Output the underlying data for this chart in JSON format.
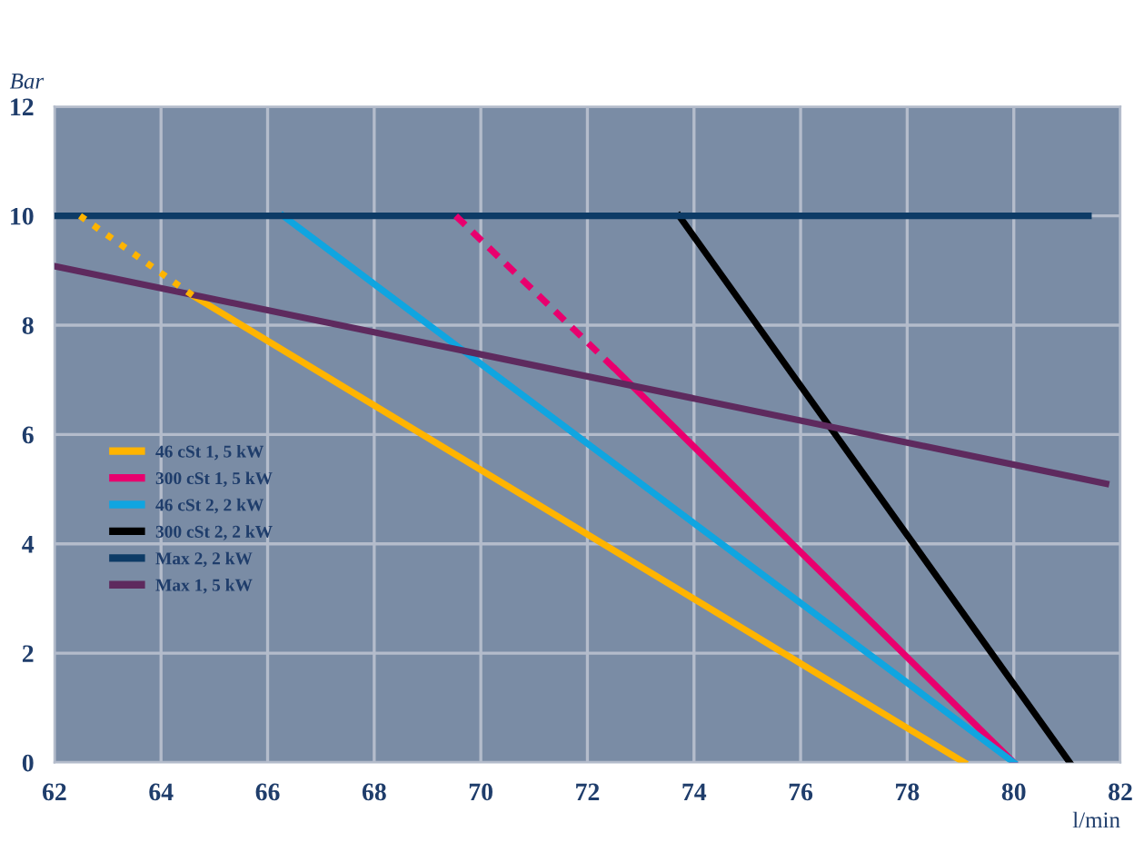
{
  "chart_data": {
    "type": "line",
    "xlabel": "l/min",
    "ylabel": "Bar",
    "xlim": [
      62,
      82
    ],
    "ylim": [
      0,
      12
    ],
    "xticks": [
      62,
      64,
      66,
      68,
      70,
      72,
      74,
      76,
      78,
      80,
      82
    ],
    "yticks": [
      0,
      2,
      4,
      6,
      8,
      10,
      12
    ],
    "grid": true,
    "legend": "left",
    "marker": "none",
    "series": [
      {
        "name": "46 cSt 1, 5 kW",
        "color": "#ffb400",
        "x": [
          64.6,
          79.07
        ],
        "values": [
          8.54,
          0
        ],
        "line_style": "solid"
      },
      {
        "name": "300 cSt 1, 5 kW",
        "color": "#e8006e",
        "x": [
          72.53,
          80
        ],
        "values": [
          7.19,
          0
        ],
        "line_style": "solid"
      },
      {
        "name": "46 cSt 2, 2 kW",
        "color": "#10a5e0",
        "x": [
          66.29,
          80
        ],
        "values": [
          10,
          0
        ],
        "line_style": "solid"
      },
      {
        "name": "300 cSt 2, 2 kW",
        "color": "#000000",
        "x": [
          73.72,
          81.05
        ],
        "values": [
          10,
          0
        ],
        "line_style": "solid"
      },
      {
        "name": "Max 2, 2 kW",
        "color": "#0d3b66",
        "x": [
          62,
          81.4
        ],
        "values": [
          10,
          10
        ],
        "line_style": "solid"
      },
      {
        "name": "Max 1, 5 kW",
        "color": "#5e2a5e",
        "x": [
          62,
          81.73
        ],
        "values": [
          9.08,
          5.1
        ],
        "line_style": "solid"
      },
      {
        "color": "#ffb400",
        "x": [
          62.48,
          64.6
        ],
        "values": [
          10,
          8.54
        ],
        "line_style": "dotted"
      },
      {
        "color": "#e8006e",
        "x": [
          69.53,
          72.53
        ],
        "values": [
          10,
          7.19
        ],
        "line_style": "dashed"
      }
    ]
  }
}
